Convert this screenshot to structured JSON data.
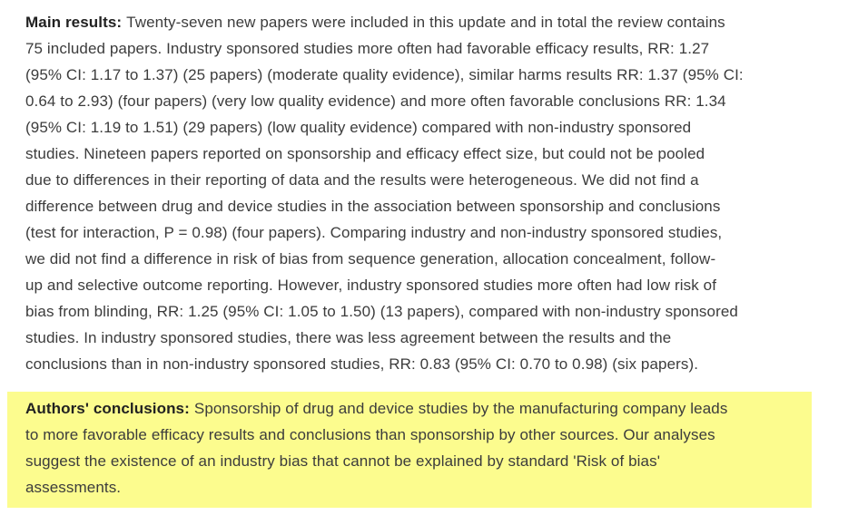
{
  "page": {
    "background_color": "#ffffff",
    "text_color": "#3c3c3c",
    "label_color": "#212121",
    "highlight_color": "#fcfc8e"
  },
  "main": {
    "paragraphs": [
      {
        "name": "main-results-paragraph",
        "highlight": false,
        "label": "Main results:",
        "lines": [
          "Twenty-seven new papers were included in this update and in total the review contains",
          "75 included papers. Industry sponsored studies more often had favorable efficacy results, RR: 1.27",
          "(95% CI: 1.17 to 1.37) (25 papers) (moderate quality evidence), similar harms results RR: 1.37 (95% CI:",
          "0.64 to 2.93) (four papers) (very low quality evidence) and more often favorable conclusions RR: 1.34",
          "(95% CI: 1.19 to 1.51) (29 papers) (low quality evidence) compared with non-industry sponsored",
          "studies. Nineteen papers reported on sponsorship and efficacy effect size, but could not be pooled",
          "due to differences in their reporting of data and the results were heterogeneous. We did not find a",
          "difference between drug and device studies in the association between sponsorship and conclusions",
          "(test for interaction, P = 0.98) (four papers). Comparing industry and non-industry sponsored studies,",
          "we did not find a difference in risk of bias from sequence generation, allocation concealment, follow-",
          "up and selective outcome reporting. However, industry sponsored studies more often had low risk of",
          "bias from blinding, RR: 1.25 (95% CI: 1.05 to 1.50) (13 papers), compared with non-industry sponsored",
          "studies. In industry sponsored studies, there was less agreement between the results and the",
          "conclusions than in non-industry sponsored studies, RR: 0.83 (95% CI: 0.70 to 0.98) (six papers)."
        ]
      },
      {
        "name": "authors-conclusions-paragraph",
        "highlight": true,
        "label": "Authors' conclusions:",
        "lines": [
          "Sponsorship of drug and device studies by the manufacturing company leads",
          "to more favorable efficacy results and conclusions than sponsorship by other sources. Our analyses",
          "suggest the existence of an industry bias that cannot be explained by standard 'Risk of bias'",
          "assessments."
        ]
      }
    ]
  }
}
